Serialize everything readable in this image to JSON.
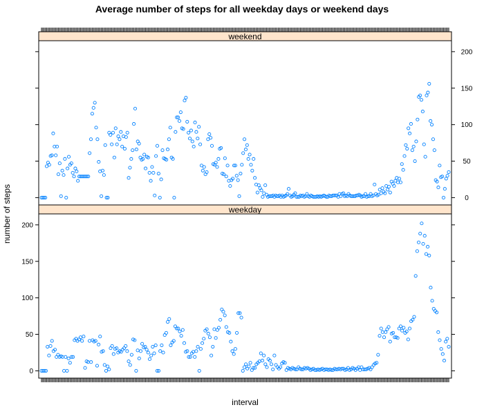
{
  "chart_data": {
    "type": "scatter",
    "title": "Average number of steps for all weekday days or weekend days",
    "xlabel": "interval",
    "ylabel": "number of steps",
    "ylim": [
      -10,
      215
    ],
    "y_ticks": [
      0,
      50,
      100,
      150,
      200
    ],
    "grid": false,
    "colors": {
      "points": "#0080ff",
      "strip": "#ffe5cc"
    },
    "panels": [
      {
        "name": "weekend",
        "values": [
          0,
          0,
          0,
          0,
          43,
          48,
          45,
          57,
          58,
          88,
          70,
          58,
          70,
          32,
          47,
          2,
          37,
          31,
          53,
          0,
          40,
          56,
          45,
          47,
          34,
          29,
          40,
          36,
          23,
          29,
          29,
          29,
          29,
          29,
          29,
          29,
          29,
          61,
          80,
          115,
          123,
          130,
          96,
          80,
          49,
          36,
          2,
          37,
          31,
          72,
          0,
          0,
          89,
          86,
          73,
          89,
          55,
          95,
          73,
          84,
          80,
          90,
          70,
          84,
          67,
          83,
          89,
          27,
          41,
          53,
          65,
          101,
          122,
          66,
          77,
          74,
          55,
          52,
          53,
          59,
          40,
          56,
          55,
          34,
          23,
          42,
          34,
          3,
          57,
          71,
          33,
          0,
          25,
          65,
          54,
          53,
          52,
          66,
          80,
          96,
          55,
          53,
          0,
          90,
          110,
          110,
          105,
          117,
          95,
          94,
          133,
          137,
          104,
          89,
          81,
          92,
          77,
          70,
          103,
          90,
          81,
          97,
          73,
          44,
          37,
          42,
          32,
          35,
          80,
          87,
          82,
          71,
          46,
          45,
          48,
          42,
          53,
          67,
          68,
          33,
          32,
          54,
          29,
          44,
          23,
          16,
          24,
          26,
          44,
          44,
          30,
          24,
          2,
          33,
          45,
          61,
          80,
          66,
          72,
          53,
          59,
          45,
          37,
          53,
          27,
          18,
          7,
          17,
          13,
          10,
          1,
          6,
          17,
          4,
          1,
          2,
          2,
          2,
          3,
          1,
          3,
          2,
          2,
          3,
          1,
          3,
          1,
          2,
          3,
          5,
          12,
          3,
          1,
          2,
          4,
          6,
          1,
          1,
          1,
          3,
          2,
          3,
          1,
          2,
          5,
          2,
          1,
          3,
          2,
          1,
          1,
          1,
          2,
          1,
          2,
          1,
          2,
          3,
          2,
          1,
          1,
          3,
          2,
          2,
          3,
          3,
          3,
          3,
          1,
          5,
          2,
          5,
          6,
          2,
          3,
          2,
          5,
          3,
          2,
          2,
          2,
          2,
          3,
          3,
          4,
          3,
          1,
          2,
          2,
          5,
          1,
          2,
          2,
          5,
          2,
          3,
          18,
          5,
          3,
          4,
          11,
          6,
          13,
          8,
          6,
          16,
          11,
          15,
          7,
          22,
          19,
          16,
          23,
          27,
          21,
          26,
          21,
          46,
          38,
          57,
          72,
          67,
          95,
          88,
          101,
          65,
          70,
          50,
          77,
          107,
          138,
          140,
          134,
          118,
          73,
          56,
          140,
          144,
          156,
          105,
          100,
          80,
          65,
          24,
          22,
          14,
          44,
          28,
          29,
          0,
          12,
          26,
          30,
          35
        ]
      },
      {
        "name": "weekday",
        "values": [
          0,
          0,
          0,
          0,
          33,
          21,
          34,
          41,
          27,
          29,
          19,
          22,
          19,
          20,
          19,
          0,
          19,
          0,
          17,
          11,
          19,
          19,
          42,
          44,
          41,
          43,
          46,
          41,
          47,
          4,
          13,
          12,
          41,
          12,
          42,
          40,
          41,
          7,
          36,
          47,
          26,
          27,
          8,
          0,
          6,
          2,
          31,
          34,
          23,
          30,
          31,
          25,
          27,
          26,
          29,
          31,
          34,
          27,
          13,
          8,
          22,
          43,
          42,
          0,
          28,
          17,
          27,
          37,
          32,
          33,
          29,
          25,
          16,
          21,
          33,
          24,
          35,
          0,
          0,
          27,
          35,
          25,
          49,
          52,
          67,
          71,
          35,
          39,
          41,
          61,
          58,
          58,
          54,
          48,
          56,
          38,
          26,
          27,
          19,
          19,
          24,
          26,
          19,
          27,
          33,
          0,
          30,
          38,
          44,
          55,
          57,
          51,
          46,
          21,
          33,
          57,
          45,
          56,
          59,
          70,
          84,
          81,
          76,
          60,
          53,
          52,
          40,
          27,
          23,
          30,
          52,
          79,
          79,
          73,
          0,
          5,
          9,
          3,
          6,
          11,
          1,
          4,
          4,
          9,
          11,
          13,
          24,
          14,
          21,
          9,
          5,
          16,
          14,
          9,
          2,
          21,
          8,
          5,
          3,
          5,
          10,
          12,
          11,
          1,
          4,
          3,
          2,
          4,
          3,
          2,
          2,
          5,
          3,
          2,
          2,
          4,
          3,
          4,
          3,
          1,
          2,
          3,
          1,
          1,
          2,
          1,
          2,
          3,
          1,
          2,
          2,
          1,
          2,
          1,
          1,
          3,
          2,
          2,
          3,
          2,
          3,
          3,
          1,
          2,
          4,
          1,
          2,
          4,
          3,
          1,
          3,
          5,
          1,
          5,
          2,
          2,
          2,
          3,
          4,
          2,
          5,
          8,
          10,
          11,
          22,
          48,
          58,
          53,
          46,
          53,
          57,
          60,
          40,
          51,
          52,
          46,
          46,
          45,
          58,
          61,
          55,
          59,
          52,
          54,
          43,
          58,
          68,
          70,
          74,
          130,
          164,
          176,
          188,
          202,
          174,
          185,
          160,
          170,
          158,
          114,
          96,
          85,
          82,
          80,
          53,
          42,
          30,
          23,
          14,
          40,
          44,
          33
        ]
      }
    ]
  }
}
